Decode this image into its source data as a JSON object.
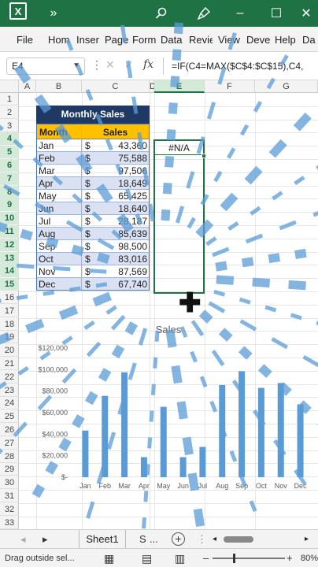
{
  "app": {
    "logo": "X",
    "colors": {
      "titlebar": "#1f7244",
      "table_title_bg": "#1f3864",
      "table_header_bg": "#ffc000",
      "band": "#d9e1f2",
      "bar": "#5b9bd5",
      "selection": "#1f7244"
    }
  },
  "titlebar": {
    "more_icon": "»",
    "search_icon": "search-icon",
    "brush_icon": "brush-icon",
    "minimize": "–",
    "maximize": "☐",
    "close": "✕"
  },
  "ribbon": {
    "tabs": [
      "File",
      "Hom",
      "Inser",
      "Page",
      "Form",
      "Data",
      "Revie",
      "View",
      "Deve",
      "Help",
      "Da"
    ]
  },
  "formula_bar": {
    "name_box": "E4",
    "more": "⋮",
    "cancel": "✕",
    "enter": "✓",
    "fx": "fx",
    "formula": "=IF(C4=MAX($C$4:$C$15),C4,"
  },
  "grid": {
    "columns": [
      "A",
      "B",
      "C",
      "D",
      "E",
      "F",
      "G"
    ],
    "rows": [
      "1",
      "2",
      "3",
      "4",
      "5",
      "6",
      "7",
      "8",
      "9",
      "10",
      "11",
      "12",
      "13",
      "14",
      "15",
      "16",
      "17",
      "18",
      "19",
      "20",
      "21",
      "22",
      "23",
      "24",
      "25",
      "26",
      "27",
      "28",
      "29",
      "30",
      "31",
      "32",
      "33"
    ]
  },
  "table": {
    "title": "Monthly Sales",
    "header_month": "Month",
    "header_sales": "Sales",
    "currency": "$",
    "rows": [
      {
        "month": "Jan",
        "value": "43,360"
      },
      {
        "month": "Feb",
        "value": "75,588"
      },
      {
        "month": "Mar",
        "value": "97,506"
      },
      {
        "month": "Apr",
        "value": "18,649"
      },
      {
        "month": "May",
        "value": "65,425"
      },
      {
        "month": "Jun",
        "value": "18,640"
      },
      {
        "month": "Jul",
        "value": "28,187"
      },
      {
        "month": "Aug",
        "value": "85,639"
      },
      {
        "month": "Sep",
        "value": "98,500"
      },
      {
        "month": "Oct",
        "value": "83,016"
      },
      {
        "month": "Nov",
        "value": "87,569"
      },
      {
        "month": "Dec",
        "value": "67,740"
      }
    ]
  },
  "selection": {
    "cell_value": "#N/A"
  },
  "chart_data": {
    "type": "bar",
    "title": "Sales",
    "categories": [
      "Jan",
      "Feb",
      "Mar",
      "Apr",
      "May",
      "Jun",
      "Jul",
      "Aug",
      "Sep",
      "Oct",
      "Nov",
      "Dec"
    ],
    "values": [
      43360,
      75588,
      97506,
      18649,
      65425,
      18640,
      28187,
      85639,
      98500,
      83016,
      87569,
      67740
    ],
    "ylim": [
      0,
      120000
    ],
    "yticks": [
      "$-",
      "$20,000",
      "$40,000",
      "$60,000",
      "$80,000",
      "$100,000",
      "$120,000"
    ],
    "xlabel": "",
    "ylabel": "",
    "grid": false
  },
  "sheet_tabs": {
    "prev": "◂",
    "next": "▸",
    "sheet1": "Sheet1",
    "sheet2": "S",
    "more": "...",
    "add": "+"
  },
  "status": {
    "text": "Drag outside sel...",
    "zoom": "80%",
    "minus": "–",
    "plus": "+"
  }
}
